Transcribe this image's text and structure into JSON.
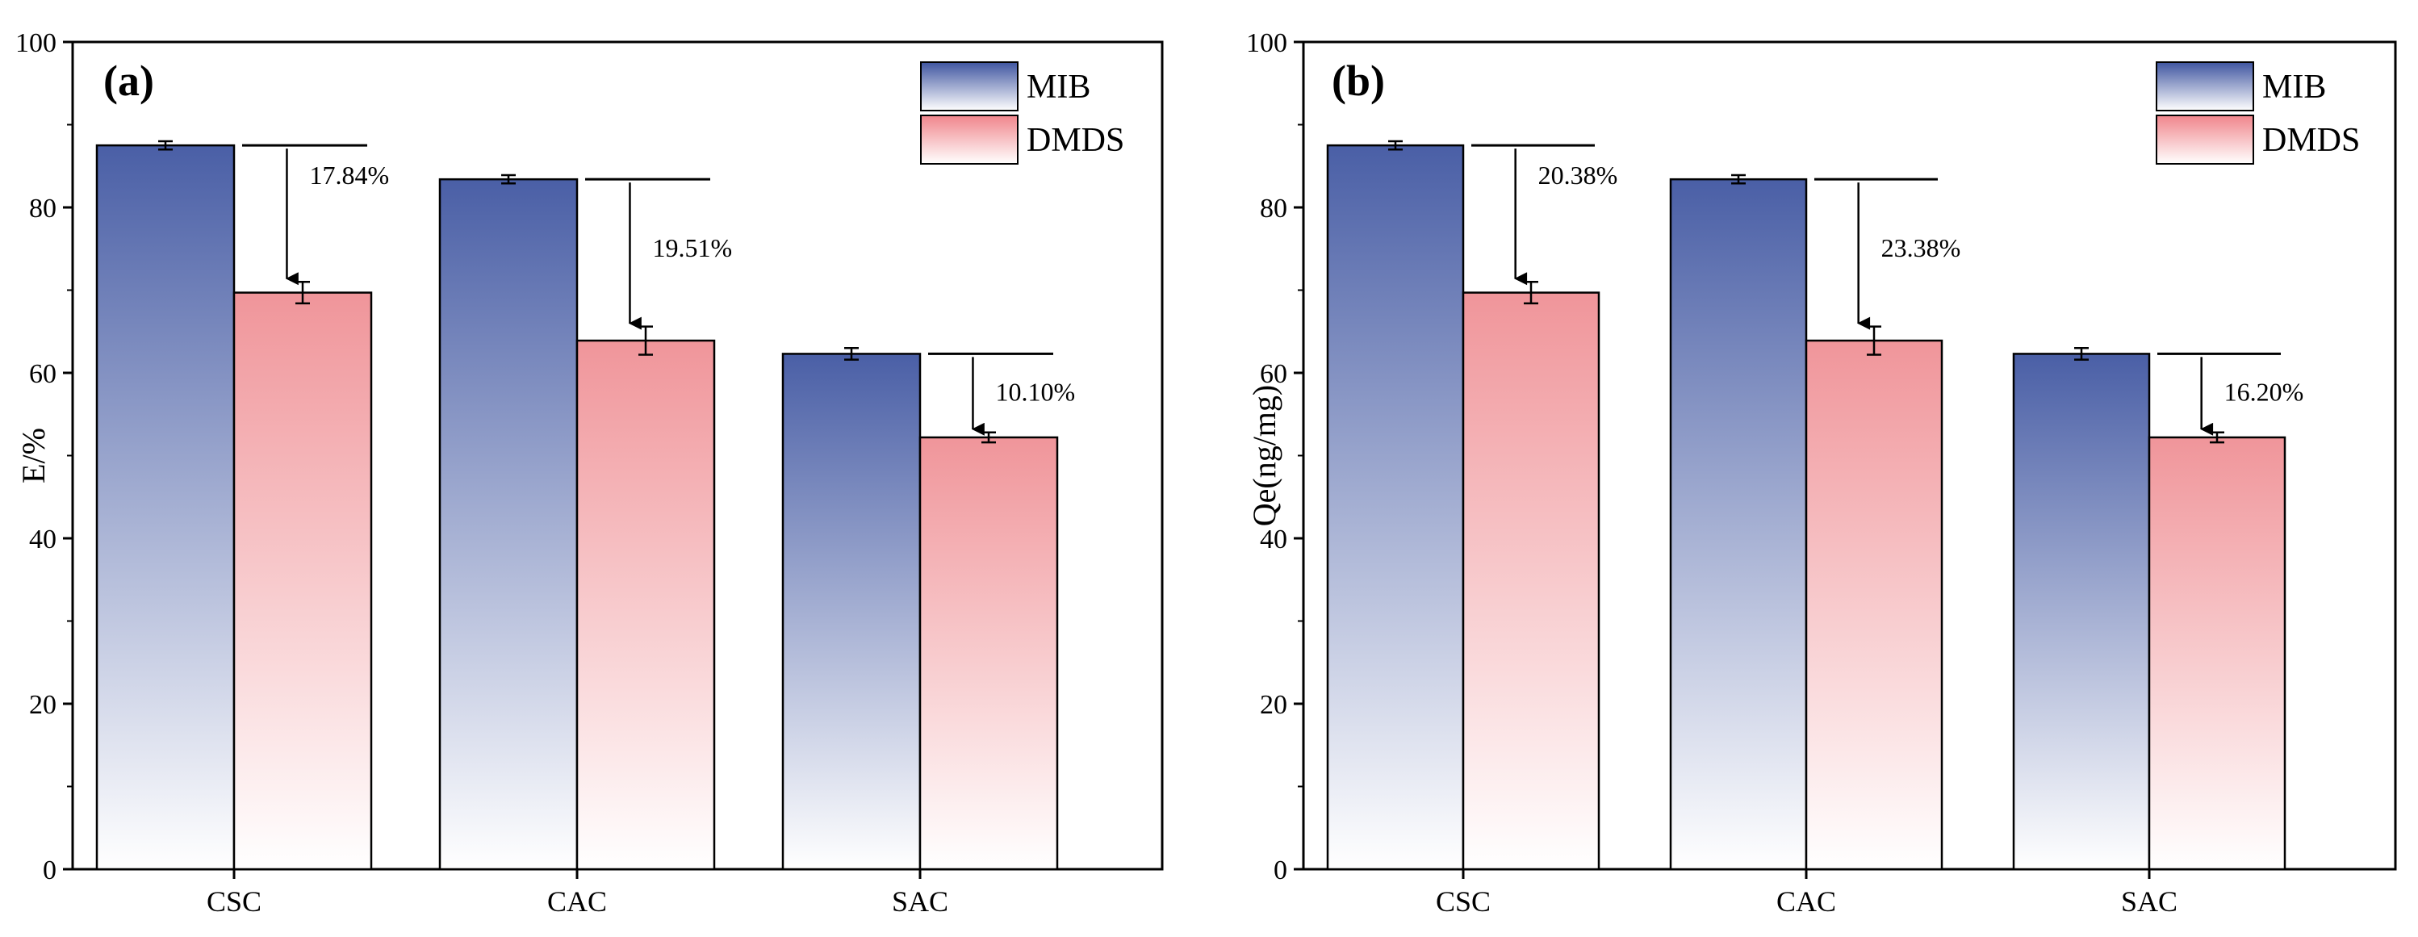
{
  "chart_data": [
    {
      "type": "bar",
      "panel_label": "(a)",
      "title": "",
      "xlabel": "",
      "ylabel": "E/%",
      "ylim": [
        0,
        100
      ],
      "yticks": [
        0,
        20,
        40,
        60,
        80,
        100
      ],
      "categories": [
        "CSC",
        "CAC",
        "SAC"
      ],
      "series": [
        {
          "name": "MIB",
          "values": [
            87.5,
            83.4,
            62.3
          ],
          "errors": [
            0.5,
            0.5,
            0.7
          ],
          "color": "#4a5fa6"
        },
        {
          "name": "DMDS",
          "values": [
            69.7,
            63.9,
            52.2
          ],
          "errors": [
            1.3,
            1.7,
            0.6
          ],
          "color": "#f0959a"
        }
      ],
      "annotations": [
        "17.84%",
        "19.51%",
        "10.10%"
      ],
      "legend": "top-right"
    },
    {
      "type": "bar",
      "panel_label": "(b)",
      "title": "",
      "xlabel": "",
      "ylabel": "Qe(ng/mg)",
      "ylim": [
        0,
        100
      ],
      "yticks": [
        0,
        20,
        40,
        60,
        80,
        100
      ],
      "categories": [
        "CSC",
        "CAC",
        "SAC"
      ],
      "series": [
        {
          "name": "MIB",
          "values": [
            87.5,
            83.4,
            62.3
          ],
          "errors": [
            0.5,
            0.5,
            0.7
          ],
          "color": "#4a5fa6"
        },
        {
          "name": "DMDS",
          "values": [
            69.7,
            63.9,
            52.2
          ],
          "errors": [
            1.3,
            1.7,
            0.6
          ],
          "color": "#f0959a"
        }
      ],
      "annotations": [
        "20.38%",
        "23.38%",
        "16.20%"
      ],
      "legend": "top-right"
    }
  ]
}
